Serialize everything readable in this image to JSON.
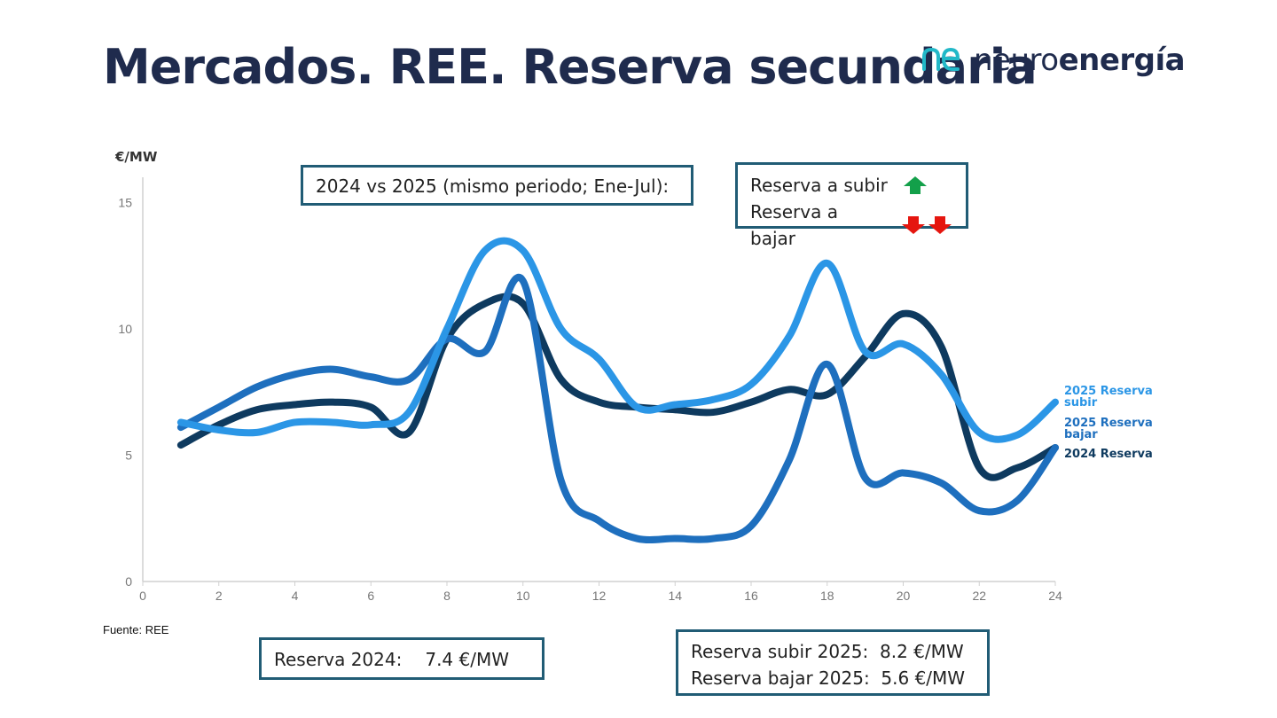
{
  "title": "Mercados. REE. Reserva secundaria",
  "logo": {
    "part1": "neuro",
    "part2": "energía"
  },
  "source": "Fuente: REE",
  "note_period": "2024 vs 2025 (mismo periodo; Ene-Jul):",
  "note_direction": {
    "up_label": "Reserva a subir",
    "down_label": "Reserva a bajar",
    "up_color": "#13a04a",
    "down_color": "#e5160f"
  },
  "summary_2024": {
    "label": "Reserva 2024:",
    "value": "7.4 €/MW"
  },
  "summary_2025": {
    "up_label": "Reserva subir 2025:",
    "up_value": "8.2 €/MW",
    "down_label": "Reserva bajar 2025:",
    "down_value": "5.6 €/MW"
  },
  "chart_data": {
    "type": "line",
    "ylabel": "€/MW",
    "xlabel": "",
    "xlim": [
      0,
      24
    ],
    "ylim": [
      0,
      16
    ],
    "xticks": [
      0,
      2,
      4,
      6,
      8,
      10,
      12,
      14,
      16,
      18,
      20,
      22,
      24
    ],
    "yticks": [
      0,
      5,
      10,
      15
    ],
    "x": [
      1,
      2,
      3,
      4,
      5,
      6,
      7,
      8,
      9,
      10,
      11,
      12,
      13,
      14,
      15,
      16,
      17,
      18,
      19,
      20,
      21,
      22,
      23,
      24
    ],
    "series": [
      {
        "name": "2024 Reserva",
        "color": "#0e3a5f",
        "values": [
          5.4,
          6.2,
          6.8,
          7.0,
          7.1,
          6.9,
          5.9,
          9.6,
          11.0,
          11.0,
          8.0,
          7.1,
          6.9,
          6.8,
          6.7,
          7.1,
          7.6,
          7.4,
          8.9,
          10.6,
          9.3,
          4.5,
          4.5,
          5.3
        ]
      },
      {
        "name": "2025 Reserva subir",
        "color": "#2b96e6",
        "values": [
          6.3,
          6.0,
          5.9,
          6.3,
          6.3,
          6.2,
          6.7,
          10.0,
          13.1,
          13.1,
          10.0,
          8.8,
          6.9,
          7.0,
          7.2,
          7.8,
          9.7,
          12.6,
          9.1,
          9.4,
          8.2,
          5.9,
          5.8,
          7.1
        ]
      },
      {
        "name": "2025 Reserva bajar",
        "color": "#1e6fbe",
        "values": [
          6.1,
          6.9,
          7.7,
          8.2,
          8.4,
          8.1,
          8.0,
          9.6,
          9.1,
          11.9,
          4.0,
          2.4,
          1.7,
          1.7,
          1.7,
          2.2,
          4.8,
          8.6,
          4.1,
          4.3,
          3.9,
          2.8,
          3.2,
          5.3
        ]
      }
    ],
    "legend": [
      {
        "line1": "2025 Reserva",
        "line2": "subir",
        "color": "#2b96e6"
      },
      {
        "line1": "2025 Reserva",
        "line2": "bajar",
        "color": "#1e6fbe"
      },
      {
        "line1": "2024 Reserva",
        "line2": "",
        "color": "#0e3a5f"
      }
    ]
  }
}
